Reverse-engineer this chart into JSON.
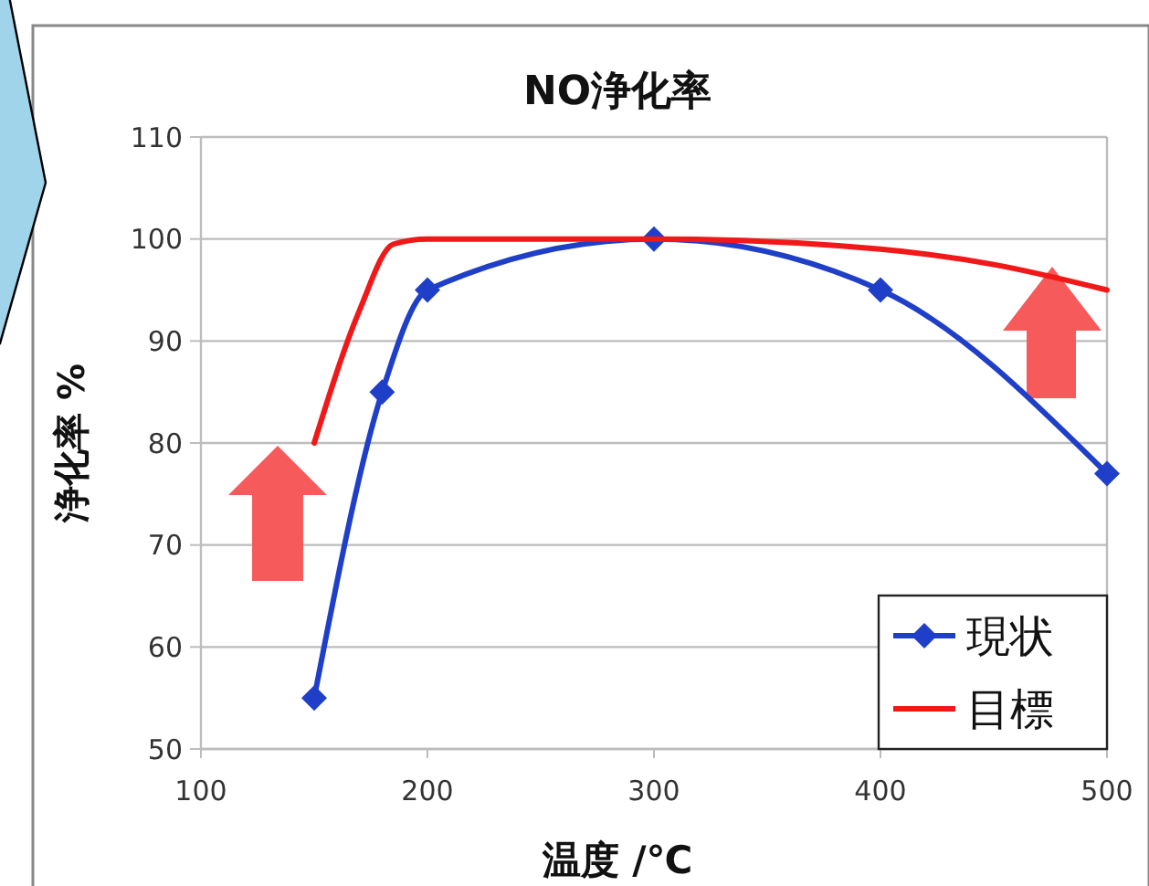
{
  "chart_data": {
    "type": "line",
    "title": "NO浄化率",
    "xlabel": "温度 /℃",
    "ylabel": "浄化率 %",
    "xlim": [
      100,
      500
    ],
    "xticks": [
      100,
      200,
      300,
      400,
      500
    ],
    "ylim": [
      50,
      110
    ],
    "yticks": [
      50,
      60,
      70,
      80,
      90,
      100,
      110
    ],
    "grid": "y",
    "legend": "bottom right",
    "line_style": "solid",
    "series": [
      {
        "name": "現状",
        "color": "#1f3fc8",
        "marker": "diamond",
        "x": [
          150,
          180,
          200,
          300,
          400,
          500
        ],
        "values": [
          55,
          85,
          95,
          100,
          95,
          77
        ]
      },
      {
        "name": "目標",
        "color": "#f01818",
        "marker": "none",
        "x": [
          150,
          170,
          185,
          200,
          300,
          400,
          450,
          500
        ],
        "values": [
          80,
          93,
          99.5,
          100,
          100,
          99,
          97.5,
          95
        ]
      }
    ]
  }
}
